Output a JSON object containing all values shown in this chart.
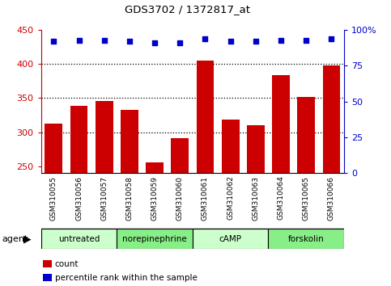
{
  "title": "GDS3702 / 1372817_at",
  "samples": [
    "GSM310055",
    "GSM310056",
    "GSM310057",
    "GSM310058",
    "GSM310059",
    "GSM310060",
    "GSM310061",
    "GSM310062",
    "GSM310063",
    "GSM310064",
    "GSM310065",
    "GSM310066"
  ],
  "counts": [
    312,
    339,
    346,
    333,
    256,
    291,
    405,
    319,
    310,
    384,
    352,
    398
  ],
  "percentile_ranks": [
    92,
    93,
    93,
    92,
    91,
    91,
    94,
    92,
    92,
    93,
    93,
    94
  ],
  "ylim_left": [
    240,
    450
  ],
  "ylim_right": [
    0,
    100
  ],
  "yticks_left": [
    250,
    300,
    350,
    400,
    450
  ],
  "yticks_right": [
    0,
    25,
    50,
    75,
    100
  ],
  "bar_color": "#cc0000",
  "dot_color": "#0000cc",
  "agent_groups": [
    {
      "label": "untreated",
      "start": 0,
      "end": 3
    },
    {
      "label": "norepinephrine",
      "start": 3,
      "end": 6
    },
    {
      "label": "cAMP",
      "start": 6,
      "end": 9
    },
    {
      "label": "forskolin",
      "start": 9,
      "end": 12
    }
  ],
  "agent_colors": [
    "#ccffcc",
    "#aaffaa",
    "#66ee66",
    "#44dd44"
  ],
  "legend_items": [
    {
      "label": "count",
      "color": "#cc0000"
    },
    {
      "label": "percentile rank within the sample",
      "color": "#0000cc"
    }
  ],
  "grid_color": "black",
  "background_color": "#ffffff",
  "sample_bg_color": "#c8c8c8"
}
